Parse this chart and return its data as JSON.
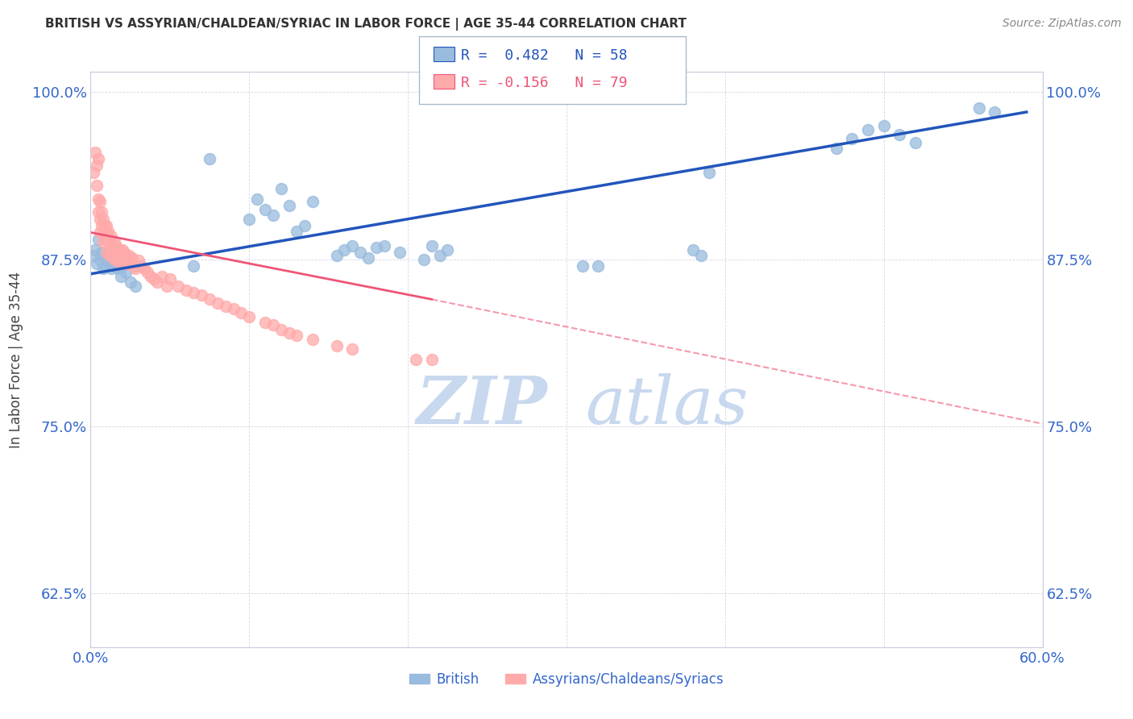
{
  "title": "BRITISH VS ASSYRIAN/CHALDEAN/SYRIAC IN LABOR FORCE | AGE 35-44 CORRELATION CHART",
  "source": "Source: ZipAtlas.com",
  "xlabel": "",
  "ylabel": "In Labor Force | Age 35-44",
  "xlim": [
    0.0,
    0.6
  ],
  "ylim": [
    0.585,
    1.015
  ],
  "yticks": [
    0.625,
    0.75,
    0.875,
    1.0
  ],
  "ytick_labels": [
    "62.5%",
    "75.0%",
    "87.5%",
    "100.0%"
  ],
  "xticks": [
    0.0,
    0.1,
    0.2,
    0.3,
    0.4,
    0.5,
    0.6
  ],
  "xtick_labels": [
    "0.0%",
    "",
    "",
    "",
    "",
    "",
    "60.0%"
  ],
  "legend_r_british": "R =  0.482",
  "legend_n_british": "N = 58",
  "legend_r_assyrian": "R = -0.156",
  "legend_n_assyrian": "N = 79",
  "color_british": "#99BBDD",
  "color_assyrian": "#FFAAAA",
  "color_trend_british": "#2255BB",
  "color_trend_assyrian": "#EE5577",
  "color_title": "#333333",
  "color_yticks": "#3366CC",
  "watermark_color": "#C8D8EE",
  "british_x": [
    0.002,
    0.003,
    0.004,
    0.005,
    0.006,
    0.007,
    0.008,
    0.009,
    0.01,
    0.011,
    0.012,
    0.013,
    0.014,
    0.015,
    0.016,
    0.017,
    0.018,
    0.019,
    0.02,
    0.022,
    0.025,
    0.028,
    0.065,
    0.075,
    0.1,
    0.105,
    0.11,
    0.115,
    0.12,
    0.125,
    0.13,
    0.135,
    0.14,
    0.155,
    0.16,
    0.165,
    0.17,
    0.175,
    0.18,
    0.185,
    0.195,
    0.21,
    0.215,
    0.22,
    0.225,
    0.31,
    0.32,
    0.38,
    0.385,
    0.39,
    0.47,
    0.48,
    0.49,
    0.5,
    0.51,
    0.52,
    0.56,
    0.57
  ],
  "british_y": [
    0.878,
    0.882,
    0.872,
    0.89,
    0.875,
    0.88,
    0.868,
    0.87,
    0.875,
    0.88,
    0.876,
    0.868,
    0.874,
    0.87,
    0.876,
    0.868,
    0.874,
    0.862,
    0.87,
    0.865,
    0.858,
    0.855,
    0.87,
    0.95,
    0.905,
    0.92,
    0.912,
    0.908,
    0.928,
    0.915,
    0.896,
    0.9,
    0.918,
    0.878,
    0.882,
    0.885,
    0.88,
    0.876,
    0.884,
    0.885,
    0.88,
    0.875,
    0.885,
    0.878,
    0.882,
    0.87,
    0.87,
    0.882,
    0.878,
    0.94,
    0.958,
    0.965,
    0.972,
    0.975,
    0.968,
    0.962,
    0.988,
    0.985
  ],
  "assyrian_x": [
    0.002,
    0.003,
    0.004,
    0.004,
    0.005,
    0.005,
    0.005,
    0.006,
    0.006,
    0.006,
    0.007,
    0.007,
    0.008,
    0.008,
    0.008,
    0.009,
    0.009,
    0.01,
    0.01,
    0.01,
    0.011,
    0.011,
    0.012,
    0.012,
    0.013,
    0.013,
    0.014,
    0.014,
    0.015,
    0.015,
    0.016,
    0.016,
    0.017,
    0.017,
    0.018,
    0.018,
    0.019,
    0.019,
    0.02,
    0.02,
    0.021,
    0.021,
    0.022,
    0.023,
    0.024,
    0.025,
    0.026,
    0.027,
    0.028,
    0.03,
    0.032,
    0.034,
    0.036,
    0.038,
    0.04,
    0.042,
    0.045,
    0.048,
    0.05,
    0.055,
    0.06,
    0.065,
    0.07,
    0.075,
    0.08,
    0.085,
    0.09,
    0.095,
    0.1,
    0.11,
    0.115,
    0.12,
    0.125,
    0.13,
    0.14,
    0.155,
    0.165,
    0.205,
    0.215
  ],
  "assyrian_y": [
    0.94,
    0.955,
    0.945,
    0.93,
    0.92,
    0.91,
    0.95,
    0.905,
    0.918,
    0.895,
    0.9,
    0.91,
    0.895,
    0.905,
    0.888,
    0.9,
    0.892,
    0.895,
    0.88,
    0.9,
    0.888,
    0.896,
    0.878,
    0.89,
    0.882,
    0.892,
    0.88,
    0.886,
    0.875,
    0.888,
    0.878,
    0.885,
    0.875,
    0.882,
    0.876,
    0.882,
    0.872,
    0.88,
    0.876,
    0.882,
    0.875,
    0.88,
    0.876,
    0.872,
    0.878,
    0.872,
    0.876,
    0.87,
    0.868,
    0.874,
    0.87,
    0.868,
    0.865,
    0.862,
    0.86,
    0.858,
    0.862,
    0.855,
    0.86,
    0.855,
    0.852,
    0.85,
    0.848,
    0.845,
    0.842,
    0.84,
    0.838,
    0.835,
    0.832,
    0.828,
    0.826,
    0.822,
    0.82,
    0.818,
    0.815,
    0.81,
    0.808,
    0.8,
    0.8
  ]
}
